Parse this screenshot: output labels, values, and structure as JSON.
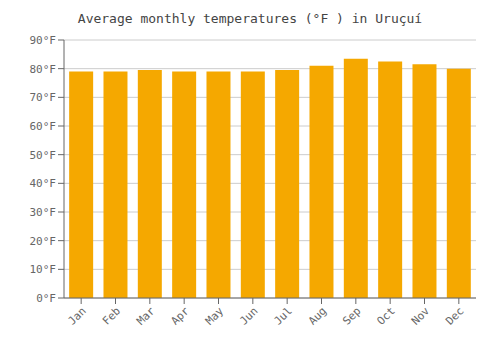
{
  "chart_data": {
    "type": "bar",
    "title": "Average monthly temperatures (°F ) in Uruçuí",
    "categories": [
      "Jan",
      "Feb",
      "Mar",
      "Apr",
      "May",
      "Jun",
      "Jul",
      "Aug",
      "Sep",
      "Oct",
      "Nov",
      "Dec"
    ],
    "values": [
      79,
      79,
      79.5,
      79,
      79,
      79,
      79.5,
      81,
      83.5,
      82.5,
      81.5,
      80
    ],
    "color": "#F5A800",
    "ylim": [
      0,
      90
    ],
    "yticks": [
      {
        "value": 0,
        "label": "0°F"
      },
      {
        "value": 10,
        "label": "10°F"
      },
      {
        "value": 20,
        "label": "20°F"
      },
      {
        "value": 30,
        "label": "30°F"
      },
      {
        "value": 40,
        "label": "40°F"
      },
      {
        "value": 50,
        "label": "50°F"
      },
      {
        "value": 60,
        "label": "60°F"
      },
      {
        "value": 70,
        "label": "70°F"
      },
      {
        "value": 80,
        "label": "80°F"
      },
      {
        "value": 90,
        "label": "90°F"
      }
    ],
    "grid": true
  }
}
